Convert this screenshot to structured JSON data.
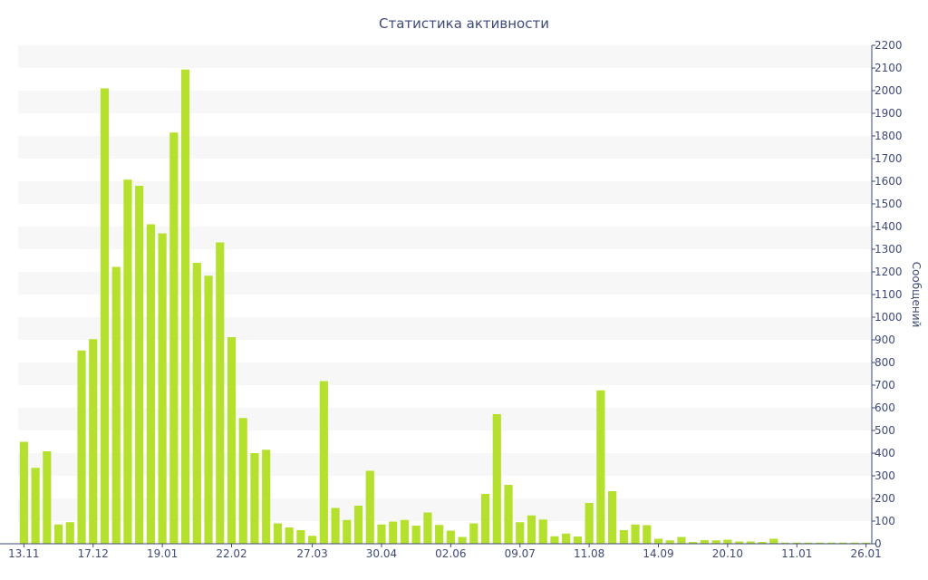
{
  "chart_data": {
    "type": "bar",
    "title": "Статистика активности",
    "xlabel": "",
    "ylabel": "Сообщений",
    "ylim": [
      0,
      2200
    ],
    "ytick_step": 100,
    "y_axis_side": "right",
    "grid": "horizontal alternating bands",
    "colors": {
      "bar": "#b5e02e",
      "band": "#f7f7f7",
      "text": "#3e4a7a",
      "axis": "#3e4a7a"
    },
    "xtick_labels": [
      {
        "index": 0,
        "label": "13.11"
      },
      {
        "index": 6,
        "label": "17.12"
      },
      {
        "index": 12,
        "label": "19.01"
      },
      {
        "index": 18,
        "label": "22.02"
      },
      {
        "index": 25,
        "label": "27.03"
      },
      {
        "index": 31,
        "label": "30.04"
      },
      {
        "index": 37,
        "label": "02.06"
      },
      {
        "index": 43,
        "label": "09.07"
      },
      {
        "index": 49,
        "label": "11.08"
      },
      {
        "index": 55,
        "label": "14.09"
      },
      {
        "index": 61,
        "label": "20.10"
      },
      {
        "index": 67,
        "label": "11.01"
      },
      {
        "index": 73,
        "label": "26.01"
      }
    ],
    "values": [
      450,
      335,
      408,
      85,
      95,
      853,
      903,
      2010,
      1222,
      1607,
      1580,
      1410,
      1370,
      1815,
      2093,
      1240,
      1183,
      1330,
      912,
      555,
      400,
      415,
      90,
      72,
      60,
      35,
      718,
      158,
      105,
      168,
      322,
      85,
      98,
      105,
      80,
      138,
      83,
      58,
      30,
      90,
      220,
      572,
      260,
      95,
      125,
      107,
      33,
      45,
      32,
      180,
      677,
      232,
      60,
      85,
      82,
      22,
      15,
      30,
      8,
      16,
      15,
      18,
      10,
      10,
      8,
      22,
      5,
      5,
      5,
      5,
      5,
      5,
      5,
      5
    ]
  }
}
